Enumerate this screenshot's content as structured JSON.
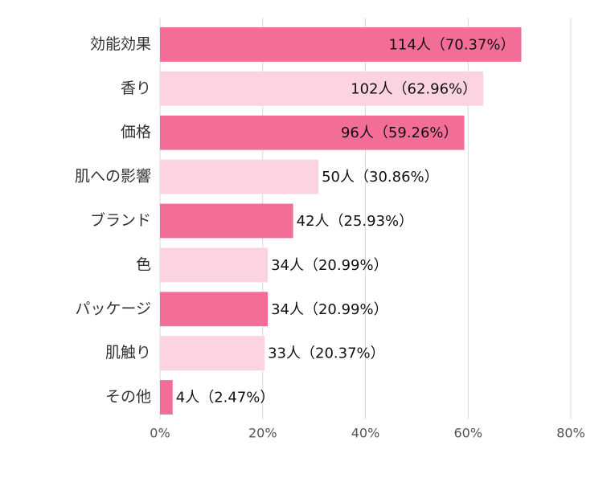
{
  "chart_data": {
    "type": "bar",
    "orientation": "horizontal",
    "categories": [
      "効能効果",
      "香り",
      "価格",
      "肌への影響",
      "ブランド",
      "色",
      "パッケージ",
      "肌触り",
      "その他"
    ],
    "values": [
      70.37,
      62.96,
      59.26,
      30.86,
      25.93,
      20.99,
      20.99,
      20.37,
      2.47
    ],
    "value_labels": [
      "114人（70.37%）",
      "102人（62.96%）",
      "96人（59.26%）",
      "50人（30.86%）",
      "42人（25.93%）",
      "34人（20.99%）",
      "34人（20.99%）",
      "33人（20.37%）",
      "4人（2.47%）"
    ],
    "colors": [
      "#f26e96",
      "#fcd3e0",
      "#f26e96",
      "#fcd3e0",
      "#f26e96",
      "#fcd3e0",
      "#f26e96",
      "#fcd3e0",
      "#f26e96"
    ],
    "xlim": [
      0,
      80
    ],
    "xticks": [
      {
        "value": 0,
        "label": "0%"
      },
      {
        "value": 20,
        "label": "20%"
      },
      {
        "value": 40,
        "label": "40%"
      },
      {
        "value": 60,
        "label": "60%"
      },
      {
        "value": 80,
        "label": "80%"
      }
    ],
    "grid": true
  }
}
